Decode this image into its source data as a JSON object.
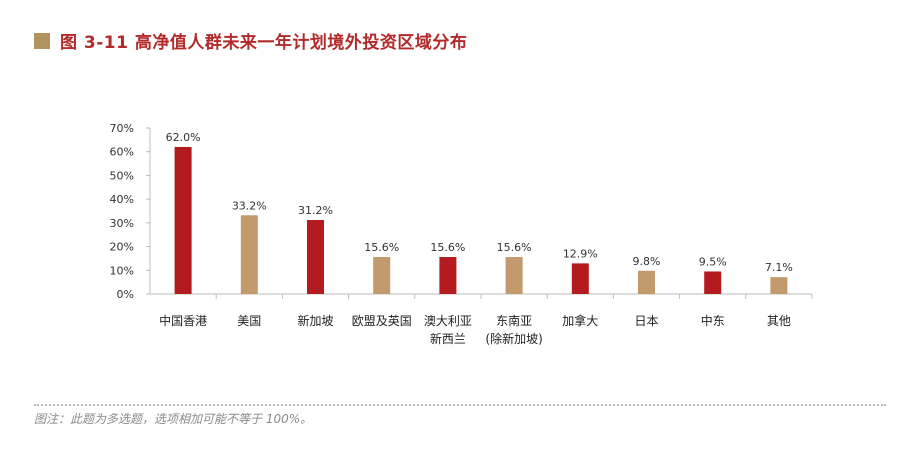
{
  "header": {
    "title": "图 3-11 高净值人群未来一年计划境外投资区域分布"
  },
  "colors": {
    "accent_red": "#b31b1f",
    "accent_tan": "#c29a6b",
    "title_square": "#b0935f",
    "title_text": "#b22a2a"
  },
  "chart_data": {
    "type": "bar",
    "title": "图 3-11 高净值人群未来一年计划境外投资区域分布",
    "categories": [
      [
        "中国香港"
      ],
      [
        "美国"
      ],
      [
        "新加坡"
      ],
      [
        "欧盟及英国"
      ],
      [
        "澳大利亚",
        "新西兰"
      ],
      [
        "东南亚",
        "(除新加坡)"
      ],
      [
        "加拿大"
      ],
      [
        "日本"
      ],
      [
        "中东"
      ],
      [
        "其他"
      ]
    ],
    "values": [
      62.0,
      33.2,
      31.2,
      15.6,
      15.6,
      15.6,
      12.9,
      9.8,
      9.5,
      7.1
    ],
    "value_labels": [
      "62.0%",
      "33.2%",
      "31.2%",
      "15.6%",
      "15.6%",
      "15.6%",
      "12.9%",
      "9.8%",
      "9.5%",
      "7.1%"
    ],
    "bar_colors": [
      "red",
      "tan",
      "red",
      "tan",
      "red",
      "tan",
      "red",
      "tan",
      "red",
      "tan"
    ],
    "yticks": [
      "0%",
      "10%",
      "20%",
      "30%",
      "40%",
      "50%",
      "60%",
      "70%"
    ],
    "ylim": [
      0,
      70
    ],
    "grid": false,
    "xlabel": "",
    "ylabel": ""
  },
  "footnote": "图注：此题为多选题，选项相加可能不等于 100%。"
}
